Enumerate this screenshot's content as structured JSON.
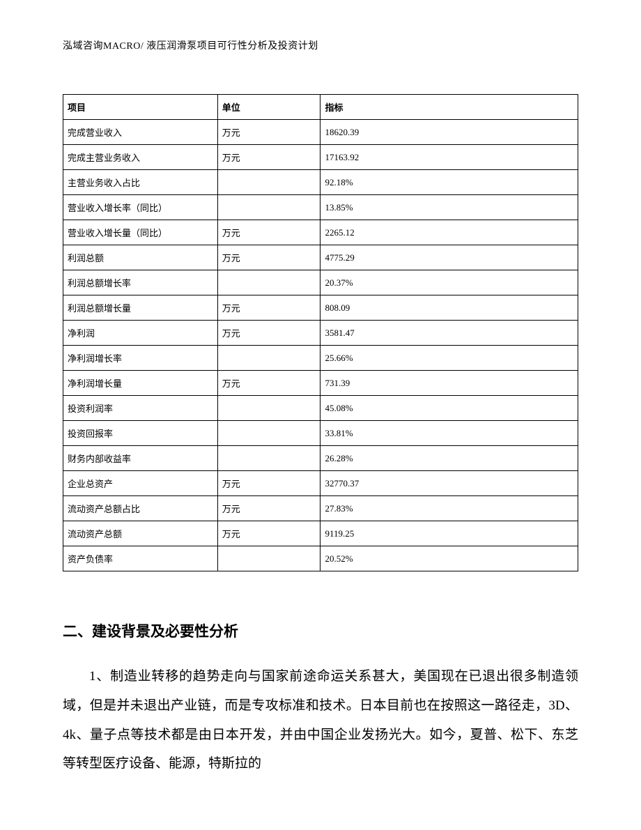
{
  "header": "泓域咨询MACRO/ 液压润滑泵项目可行性分析及投资计划",
  "table": {
    "columns": [
      "项目",
      "单位",
      "指标"
    ],
    "rows": [
      {
        "item": "完成营业收入",
        "unit": "万元",
        "value": "18620.39"
      },
      {
        "item": "完成主营业务收入",
        "unit": "万元",
        "value": "17163.92"
      },
      {
        "item": "主营业务收入占比",
        "unit": "",
        "value": "92.18%"
      },
      {
        "item": "营业收入增长率（同比）",
        "unit": "",
        "value": "13.85%"
      },
      {
        "item": "营业收入增长量（同比）",
        "unit": "万元",
        "value": "2265.12"
      },
      {
        "item": "利润总额",
        "unit": "万元",
        "value": "4775.29"
      },
      {
        "item": "利润总额增长率",
        "unit": "",
        "value": "20.37%"
      },
      {
        "item": "利润总额增长量",
        "unit": "万元",
        "value": "808.09"
      },
      {
        "item": "净利润",
        "unit": "万元",
        "value": "3581.47"
      },
      {
        "item": "净利润增长率",
        "unit": "",
        "value": "25.66%"
      },
      {
        "item": "净利润增长量",
        "unit": "万元",
        "value": "731.39"
      },
      {
        "item": "投资利润率",
        "unit": "",
        "value": "45.08%"
      },
      {
        "item": "投资回报率",
        "unit": "",
        "value": "33.81%"
      },
      {
        "item": "财务内部收益率",
        "unit": "",
        "value": "26.28%"
      },
      {
        "item": "企业总资产",
        "unit": "万元",
        "value": "32770.37"
      },
      {
        "item": "流动资产总额占比",
        "unit": "万元",
        "value": "27.83%"
      },
      {
        "item": "流动资产总额",
        "unit": "万元",
        "value": "9119.25"
      },
      {
        "item": "资产负债率",
        "unit": "",
        "value": "20.52%"
      }
    ]
  },
  "section_heading": "二、建设背景及必要性分析",
  "paragraph": "1、制造业转移的趋势走向与国家前途命运关系甚大，美国现在已退出很多制造领域，但是并未退出产业链，而是专攻标准和技术。日本目前也在按照这一路径走，3D、4k、量子点等技术都是由日本开发，并由中国企业发扬光大。如今，夏普、松下、东芝等转型医疗设备、能源，特斯拉的"
}
